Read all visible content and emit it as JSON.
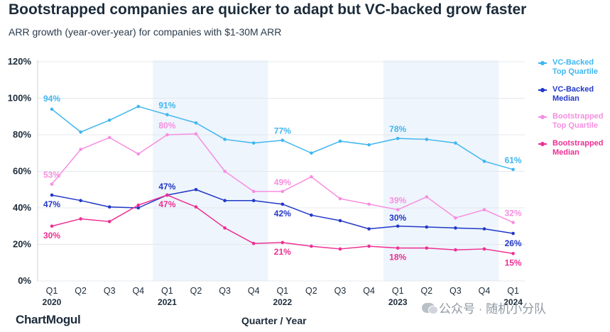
{
  "title": "Bootstrapped companies are quicker to adapt but VC-backed grow faster",
  "subtitle": "ARR growth (year-over-year) for companies with $1-30M ARR",
  "logo": "ChartMogul",
  "watermark": "公众号 · 随机小分队",
  "colors": {
    "vc_top": "#3fb6ef",
    "vc_median": "#2238c8",
    "boot_top": "#f78ee0",
    "boot_median": "#ee2f93",
    "grid": "#e4e8ec",
    "band": "#eef5fc"
  },
  "chart_data": {
    "type": "line",
    "xlabel": "Quarter / Year",
    "ylabel": "",
    "ylim": [
      0,
      120
    ],
    "yticks": [
      "0%",
      "20%",
      "40%",
      "60%",
      "80%",
      "100%",
      "120%"
    ],
    "categories": [
      "Q1 2020",
      "Q2 2020",
      "Q3 2020",
      "Q4 2020",
      "Q1 2021",
      "Q2 2021",
      "Q3 2021",
      "Q4 2021",
      "Q1 2022",
      "Q2 2022",
      "Q3 2022",
      "Q4 2022",
      "Q1 2023",
      "Q2 2023",
      "Q3 2023",
      "Q4 2023",
      "Q1 2024"
    ],
    "quarter_labels": [
      "Q1",
      "Q2",
      "Q3",
      "Q4",
      "Q1",
      "Q2",
      "Q3",
      "Q4",
      "Q1",
      "Q2",
      "Q3",
      "Q4",
      "Q1",
      "Q2",
      "Q3",
      "Q4",
      "Q1"
    ],
    "year_labels": [
      "2020",
      "",
      "",
      "",
      "2021",
      "",
      "",
      "",
      "2022",
      "",
      "",
      "",
      "2023",
      "",
      "",
      "",
      "2024"
    ],
    "shaded_years": [
      "2021",
      "2023"
    ],
    "legend_position": "right",
    "series": [
      {
        "name": "VC-Backed Top Quartile",
        "legend_lines": [
          "VC-Backed",
          "Top Quartile"
        ],
        "color": "#3fb6ef",
        "values": [
          94,
          81.5,
          88,
          95.5,
          91,
          86.5,
          77.5,
          75.5,
          77,
          70,
          76.5,
          74.5,
          78,
          77.5,
          75.5,
          65.5,
          61
        ],
        "data_labels": [
          "94%",
          "",
          "",
          "",
          "91%",
          "",
          "",
          "",
          "77%",
          "",
          "",
          "",
          "78%",
          "",
          "",
          "",
          "61%"
        ]
      },
      {
        "name": "VC-Backed Median",
        "legend_lines": [
          "VC-Backed",
          "Median"
        ],
        "color": "#2238c8",
        "values": [
          47,
          44,
          40.5,
          40,
          47,
          50,
          44,
          44,
          42,
          36,
          33,
          28.5,
          30,
          29.5,
          29,
          28.5,
          26
        ],
        "data_labels": [
          "47%",
          "",
          "",
          "",
          "47%",
          "",
          "",
          "",
          "42%",
          "",
          "",
          "",
          "30%",
          "",
          "",
          "",
          "26%"
        ]
      },
      {
        "name": "Bootstrapped Top Quartile",
        "legend_lines": [
          "Bootstrapped",
          "Top Quartile"
        ],
        "color": "#f78ee0",
        "values": [
          53,
          72,
          78.5,
          69.5,
          80,
          80.5,
          60,
          49,
          49,
          57,
          45,
          42,
          39,
          46,
          34.5,
          39,
          32
        ],
        "data_labels": [
          "53%",
          "",
          "",
          "",
          "80%",
          "",
          "",
          "",
          "49%",
          "",
          "",
          "",
          "39%",
          "",
          "",
          "",
          "32%"
        ]
      },
      {
        "name": "Bootstrapped Median",
        "legend_lines": [
          "Bootstrapped",
          "Median"
        ],
        "color": "#ee2f93",
        "values": [
          30,
          34,
          32.5,
          41.5,
          47,
          40.5,
          29,
          20.5,
          21,
          19,
          17.5,
          19,
          18,
          18,
          17,
          17.5,
          15
        ],
        "data_labels": [
          "30%",
          "",
          "",
          "",
          "47%",
          "",
          "",
          "",
          "21%",
          "",
          "",
          "",
          "18%",
          "",
          "",
          "",
          "15%"
        ]
      }
    ]
  }
}
